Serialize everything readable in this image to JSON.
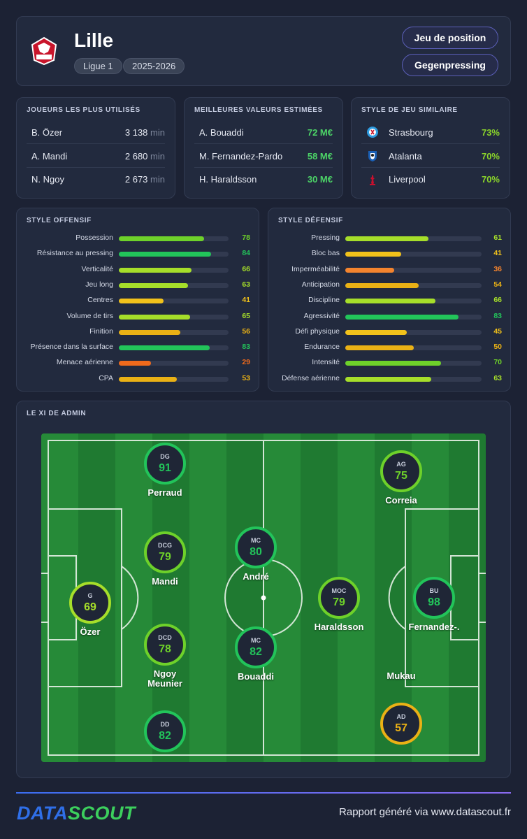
{
  "header": {
    "team": "Lille",
    "league": "Ligue 1",
    "season": "2025-2026",
    "styles": [
      "Jeu de position",
      "Gegenpressing"
    ],
    "logo_text": "LOSC"
  },
  "most_used": {
    "title": "JOUEURS LES PLUS UTILISÉS",
    "unit": "min",
    "rows": [
      {
        "name": "B. Özer",
        "value": "3 138"
      },
      {
        "name": "A. Mandi",
        "value": "2 680"
      },
      {
        "name": "N. Ngoy",
        "value": "2 673"
      }
    ]
  },
  "best_values": {
    "title": "MEILLEURES VALEURS ESTIMÉES",
    "rows": [
      {
        "name": "A. Bouaddi",
        "value": "72 M€"
      },
      {
        "name": "M. Fernandez-Pardo",
        "value": "58 M€"
      },
      {
        "name": "H. Haraldsson",
        "value": "30 M€"
      }
    ]
  },
  "similar_style": {
    "title": "STYLE DE JEU SIMILAIRE",
    "rows": [
      {
        "name": "Strasbourg",
        "value": "73%",
        "icon": "strasbourg-crest-icon"
      },
      {
        "name": "Atalanta",
        "value": "70%",
        "icon": "atalanta-crest-icon"
      },
      {
        "name": "Liverpool",
        "value": "70%",
        "icon": "liverpool-crest-icon"
      }
    ]
  },
  "offensive": {
    "title": "STYLE OFFENSIF",
    "items": [
      {
        "label": "Possession",
        "value": 78
      },
      {
        "label": "Résistance au pressing",
        "value": 84
      },
      {
        "label": "Verticalité",
        "value": 66
      },
      {
        "label": "Jeu long",
        "value": 63
      },
      {
        "label": "Centres",
        "value": 41
      },
      {
        "label": "Volume de tirs",
        "value": 65
      },
      {
        "label": "Finition",
        "value": 56
      },
      {
        "label": "Présence dans la surface",
        "value": 83
      },
      {
        "label": "Menace aérienne",
        "value": 29
      },
      {
        "label": "CPA",
        "value": 53
      }
    ]
  },
  "defensive": {
    "title": "STYLE DÉFENSIF",
    "items": [
      {
        "label": "Pressing",
        "value": 61
      },
      {
        "label": "Bloc bas",
        "value": 41
      },
      {
        "label": "Imperméabilité",
        "value": 36
      },
      {
        "label": "Anticipation",
        "value": 54
      },
      {
        "label": "Discipline",
        "value": 66
      },
      {
        "label": "Agressivité",
        "value": 83
      },
      {
        "label": "Défi physique",
        "value": 45
      },
      {
        "label": "Endurance",
        "value": 50
      },
      {
        "label": "Intensité",
        "value": 70
      },
      {
        "label": "Défense aérienne",
        "value": 63
      }
    ]
  },
  "xi": {
    "title": "LE XI DE ADMIN",
    "players": [
      {
        "pos": "G",
        "rating": 69,
        "name": "Özer"
      },
      {
        "pos": "DG",
        "rating": 91,
        "name": "Perraud"
      },
      {
        "pos": "DCG",
        "rating": 79,
        "name": "Mandi"
      },
      {
        "pos": "DCD",
        "rating": 78,
        "name": "Ngoy"
      },
      {
        "pos": "DD",
        "rating": 82,
        "name": "Meunier"
      },
      {
        "pos": "MC",
        "rating": 80,
        "name": "André"
      },
      {
        "pos": "MC",
        "rating": 82,
        "name": "Bouaddi"
      },
      {
        "pos": "MOC",
        "rating": 79,
        "name": "Haraldsson"
      },
      {
        "pos": "AG",
        "rating": 75,
        "name": "Correia"
      },
      {
        "pos": "BU",
        "rating": 98,
        "name": "Fernandez-."
      },
      {
        "pos": "AD",
        "rating": 57,
        "name": "Mukau"
      }
    ]
  },
  "footer": {
    "logo_data": "DATA",
    "logo_scout": "SCOUT",
    "text": "Rapport généré via www.datascout.fr"
  },
  "colors": {
    "dark_green": "#22c45a",
    "green": "#6ed12a",
    "lime": "#a6de2a",
    "yellow": "#f2c21b",
    "amber": "#eab115",
    "orange": "#f4842e",
    "red_orange": "#f06a1c"
  }
}
